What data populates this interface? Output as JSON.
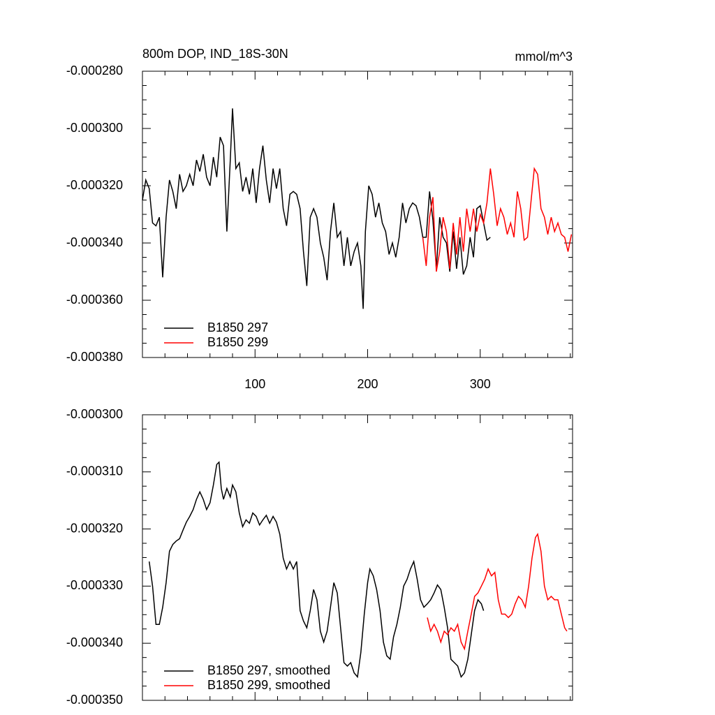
{
  "chart_data": [
    {
      "type": "line",
      "title": "800m DOP, IND_18S-30N",
      "units": "mmol/m^3",
      "xlim": [
        0,
        382
      ],
      "xticks": [
        100,
        200,
        300
      ],
      "xtick_labels": true,
      "ylim": [
        -0.00038,
        -0.00028
      ],
      "yticks": [
        {
          "value": -0.00038,
          "label": "-0.000380"
        },
        {
          "value": -0.00036,
          "label": "-0.000360"
        },
        {
          "value": -0.00034,
          "label": "-0.000340"
        },
        {
          "value": -0.00032,
          "label": "-0.000320"
        },
        {
          "value": -0.0003,
          "label": "-0.000300"
        },
        {
          "value": -0.00028,
          "label": "-0.000280"
        }
      ],
      "legend": "lower left",
      "series": [
        {
          "name": "B1850 297",
          "color": "#000000",
          "x": [
            0,
            3,
            6,
            9,
            12,
            15,
            18,
            21,
            24,
            27,
            30,
            33,
            36,
            39,
            42,
            45,
            48,
            51,
            54,
            57,
            60,
            63,
            66,
            69,
            72,
            75,
            78,
            80,
            83,
            86,
            89,
            92,
            95,
            98,
            101,
            104,
            107,
            110,
            113,
            116,
            119,
            122,
            125,
            128,
            131,
            134,
            137,
            140,
            143,
            146,
            149,
            152,
            155,
            158,
            161,
            164,
            167,
            170,
            173,
            176,
            179,
            182,
            185,
            188,
            191,
            194,
            196,
            198,
            201,
            204,
            207,
            210,
            213,
            216,
            219,
            222,
            225,
            228,
            231,
            234,
            237,
            240,
            243,
            246,
            249,
            252,
            255,
            258,
            261,
            264,
            267,
            270,
            273,
            276,
            279,
            282,
            285,
            288,
            291,
            294,
            297,
            300,
            303,
            306,
            309
          ],
          "values": [
            -0.000325,
            -0.000318,
            -0.000321,
            -0.000333,
            -0.000334,
            -0.000331,
            -0.000352,
            -0.000331,
            -0.000318,
            -0.000322,
            -0.000328,
            -0.000316,
            -0.000322,
            -0.00032,
            -0.000316,
            -0.00032,
            -0.000311,
            -0.000315,
            -0.000309,
            -0.000317,
            -0.00032,
            -0.00031,
            -0.000317,
            -0.000303,
            -0.000306,
            -0.000336,
            -0.000311,
            -0.000293,
            -0.000314,
            -0.000312,
            -0.000322,
            -0.000317,
            -0.000323,
            -0.000314,
            -0.000326,
            -0.000314,
            -0.000306,
            -0.000318,
            -0.000326,
            -0.000314,
            -0.000321,
            -0.000314,
            -0.000328,
            -0.000334,
            -0.000323,
            -0.000322,
            -0.000323,
            -0.000328,
            -0.000343,
            -0.000355,
            -0.000331,
            -0.000328,
            -0.000331,
            -0.00034,
            -0.000345,
            -0.000353,
            -0.000336,
            -0.000326,
            -0.000338,
            -0.000336,
            -0.000348,
            -0.000338,
            -0.000348,
            -0.000343,
            -0.00034,
            -0.000348,
            -0.000363,
            -0.000336,
            -0.00032,
            -0.000323,
            -0.000331,
            -0.000326,
            -0.000333,
            -0.000336,
            -0.000344,
            -0.00034,
            -0.000345,
            -0.000338,
            -0.000326,
            -0.000333,
            -0.000328,
            -0.000326,
            -0.000327,
            -0.000331,
            -0.000338,
            -0.000338,
            -0.000322,
            -0.000332,
            -0.000349,
            -0.000331,
            -0.000338,
            -0.00034,
            -0.00035,
            -0.000336,
            -0.000349,
            -0.000338,
            -0.000351,
            -0.000348,
            -0.000338,
            -0.000345,
            -0.000328,
            -0.000327,
            -0.000333,
            -0.000339,
            -0.000338
          ]
        },
        {
          "name": "B1850 299",
          "color": "#ff0000",
          "x": [
            249,
            252,
            255,
            258,
            261,
            264,
            267,
            270,
            273,
            276,
            279,
            282,
            285,
            288,
            291,
            294,
            297,
            300,
            303,
            306,
            309,
            312,
            315,
            318,
            321,
            324,
            327,
            330,
            333,
            336,
            339,
            342,
            345,
            348,
            351,
            354,
            357,
            360,
            363,
            366,
            369,
            372,
            375,
            378,
            381
          ],
          "values": [
            -0.000338,
            -0.000348,
            -0.000331,
            -0.000324,
            -0.00035,
            -0.000343,
            -0.000331,
            -0.000336,
            -0.000349,
            -0.000333,
            -0.000344,
            -0.000331,
            -0.000343,
            -0.000328,
            -0.000336,
            -0.000328,
            -0.000336,
            -0.00033,
            -0.000333,
            -0.000326,
            -0.000314,
            -0.000323,
            -0.000334,
            -0.000328,
            -0.000331,
            -0.000337,
            -0.000333,
            -0.000338,
            -0.000322,
            -0.000328,
            -0.000339,
            -0.000338,
            -0.000326,
            -0.000314,
            -0.000316,
            -0.000328,
            -0.000331,
            -0.000337,
            -0.000331,
            -0.000336,
            -0.000333,
            -0.000337,
            -0.000338,
            -0.000343,
            -0.000337
          ]
        }
      ]
    },
    {
      "type": "line",
      "xlim": [
        0,
        382
      ],
      "xticks": [
        100,
        200,
        300
      ],
      "xtick_labels": false,
      "ylim": [
        -0.00035,
        -0.0003
      ],
      "yticks": [
        {
          "value": -0.00035,
          "label": "-0.000350"
        },
        {
          "value": -0.00034,
          "label": "-0.000340"
        },
        {
          "value": -0.00033,
          "label": "-0.000330"
        },
        {
          "value": -0.00032,
          "label": "-0.000320"
        },
        {
          "value": -0.00031,
          "label": "-0.000310"
        },
        {
          "value": -0.0003,
          "label": "-0.000300"
        }
      ],
      "legend": "lower left",
      "series": [
        {
          "name": "B1850 297, smoothed",
          "color": "#000000",
          "x": [
            6,
            9,
            12,
            15,
            18,
            21,
            24,
            27,
            30,
            33,
            36,
            39,
            42,
            45,
            48,
            51,
            54,
            57,
            60,
            63,
            66,
            68,
            70,
            72,
            75,
            78,
            80,
            83,
            86,
            89,
            92,
            95,
            98,
            101,
            104,
            107,
            110,
            113,
            116,
            119,
            122,
            125,
            128,
            131,
            134,
            137,
            140,
            143,
            146,
            149,
            152,
            155,
            158,
            161,
            164,
            167,
            170,
            173,
            176,
            179,
            182,
            185,
            188,
            191,
            194,
            197,
            200,
            202,
            205,
            208,
            211,
            214,
            217,
            220,
            223,
            226,
            229,
            232,
            235,
            238,
            241,
            244,
            247,
            250,
            253,
            256,
            259,
            262,
            265,
            268,
            271,
            274,
            277,
            280,
            283,
            286,
            289,
            292,
            295,
            298,
            301,
            303
          ],
          "values": [
            -0.0003257,
            -0.00033,
            -0.0003367,
            -0.0003367,
            -0.0003337,
            -0.0003294,
            -0.0003239,
            -0.0003227,
            -0.0003221,
            -0.0003217,
            -0.0003202,
            -0.0003188,
            -0.0003178,
            -0.0003166,
            -0.0003148,
            -0.0003135,
            -0.0003148,
            -0.0003166,
            -0.0003154,
            -0.0003123,
            -0.0003087,
            -0.0003083,
            -0.0003129,
            -0.0003148,
            -0.0003129,
            -0.0003144,
            -0.0003123,
            -0.0003135,
            -0.0003172,
            -0.0003196,
            -0.0003184,
            -0.000319,
            -0.0003172,
            -0.0003178,
            -0.0003193,
            -0.0003184,
            -0.0003176,
            -0.000319,
            -0.0003178,
            -0.0003188,
            -0.0003209,
            -0.0003251,
            -0.000327,
            -0.0003257,
            -0.000327,
            -0.0003257,
            -0.0003343,
            -0.0003361,
            -0.0003373,
            -0.0003343,
            -0.0003306,
            -0.0003324,
            -0.0003379,
            -0.0003398,
            -0.0003379,
            -0.0003337,
            -0.0003294,
            -0.0003312,
            -0.0003373,
            -0.0003434,
            -0.000344,
            -0.0003434,
            -0.0003452,
            -0.0003459,
            -0.0003416,
            -0.0003349,
            -0.0003294,
            -0.000327,
            -0.0003282,
            -0.0003306,
            -0.0003343,
            -0.0003398,
            -0.0003422,
            -0.0003428,
            -0.0003389,
            -0.0003367,
            -0.0003337,
            -0.00033,
            -0.0003288,
            -0.000327,
            -0.0003257,
            -0.0003288,
            -0.0003324,
            -0.0003337,
            -0.0003331,
            -0.0003324,
            -0.0003312,
            -0.0003298,
            -0.0003306,
            -0.0003337,
            -0.0003373,
            -0.0003428,
            -0.0003434,
            -0.000344,
            -0.0003459,
            -0.0003452,
            -0.0003428,
            -0.0003385,
            -0.0003343,
            -0.0003324,
            -0.0003331,
            -0.0003343
          ]
        },
        {
          "name": "B1850 299, smoothed",
          "color": "#ff0000",
          "x": [
            253,
            256,
            259,
            262,
            265,
            268,
            271,
            274,
            277,
            280,
            283,
            286,
            289,
            292,
            295,
            298,
            301,
            304,
            307,
            310,
            313,
            316,
            319,
            322,
            325,
            328,
            331,
            334,
            337,
            340,
            343,
            346,
            349,
            351,
            354,
            357,
            360,
            363,
            366,
            369,
            372,
            375,
            377
          ],
          "values": [
            -0.0003355,
            -0.0003379,
            -0.0003367,
            -0.0003379,
            -0.0003398,
            -0.0003379,
            -0.0003385,
            -0.0003373,
            -0.0003379,
            -0.0003367,
            -0.0003398,
            -0.000341,
            -0.0003379,
            -0.0003349,
            -0.0003318,
            -0.0003312,
            -0.00033,
            -0.0003288,
            -0.000327,
            -0.0003282,
            -0.0003276,
            -0.0003324,
            -0.0003349,
            -0.0003349,
            -0.0003355,
            -0.0003349,
            -0.0003331,
            -0.0003318,
            -0.0003324,
            -0.0003337,
            -0.00033,
            -0.0003251,
            -0.0003215,
            -0.0003209,
            -0.0003239,
            -0.00033,
            -0.0003324,
            -0.0003318,
            -0.0003324,
            -0.0003324,
            -0.0003349,
            -0.0003373,
            -0.0003379
          ]
        }
      ]
    }
  ]
}
